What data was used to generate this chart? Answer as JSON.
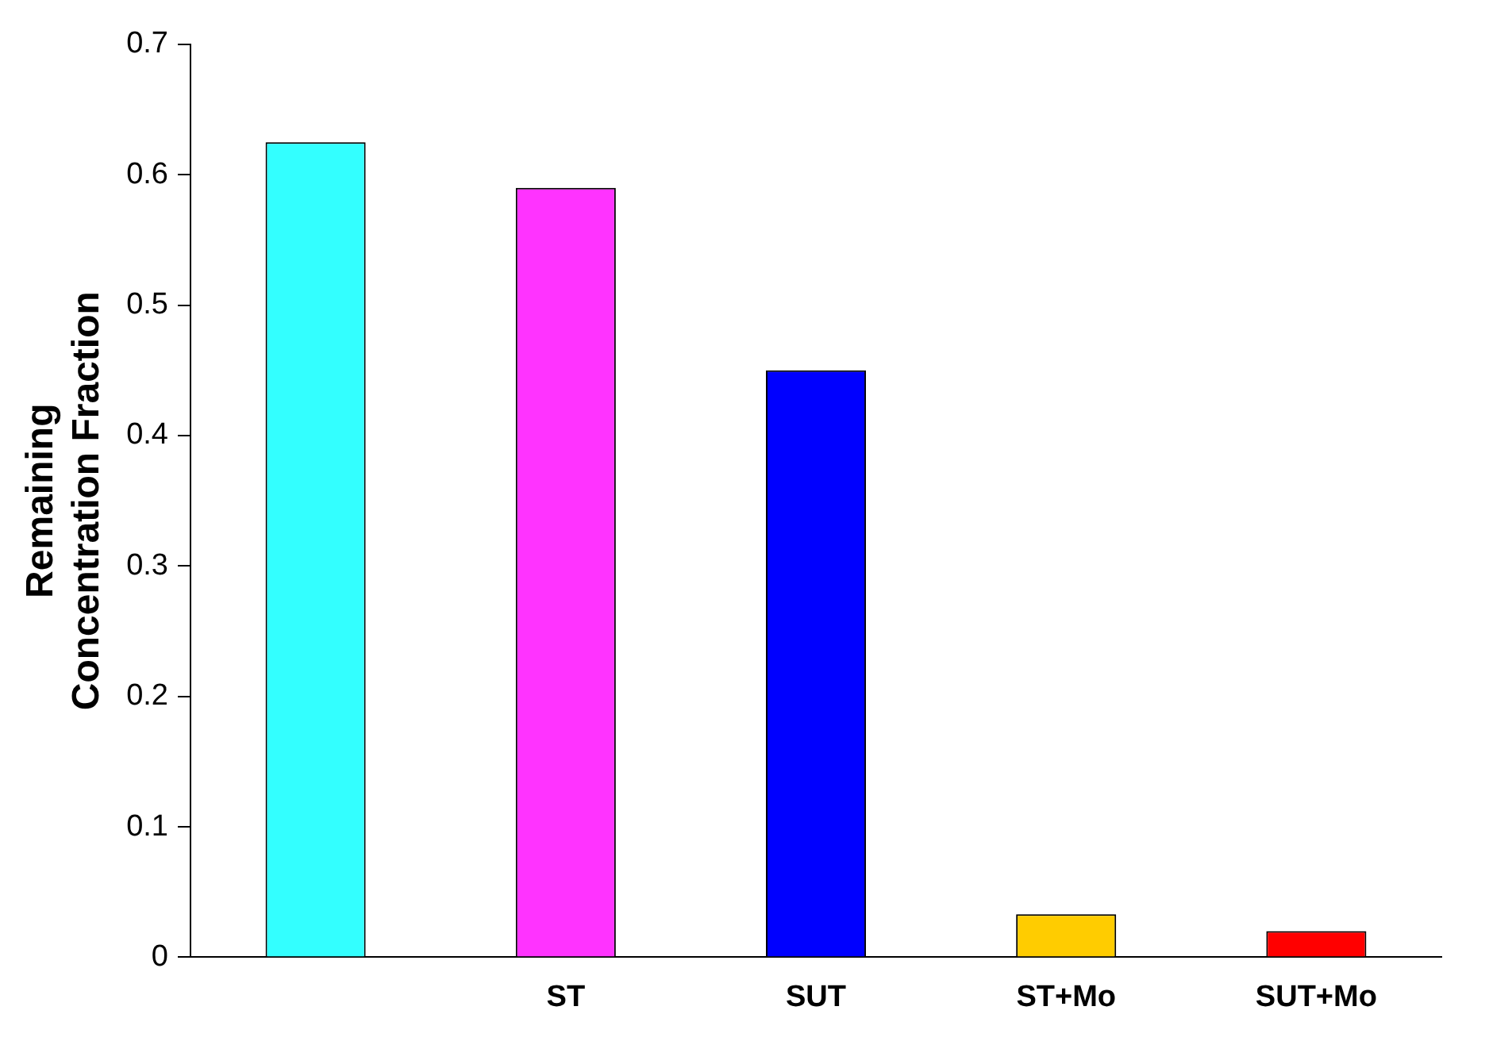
{
  "chart_data": {
    "type": "bar",
    "ylabel": "Remaining\nConcentration Fraction",
    "categories": [
      null,
      "ST",
      "SUT",
      "ST+Mo",
      "SUT+Mo"
    ],
    "values": [
      0.625,
      0.59,
      0.45,
      0.033,
      0.02
    ],
    "colors": [
      "#33ffff",
      "#ff33ff",
      "#0000ff",
      "#ffcc00",
      "#ff0000"
    ],
    "ylim": [
      0,
      0.7
    ],
    "yticks": [
      0,
      0.1,
      0.2,
      0.3,
      0.4,
      0.5,
      0.6,
      0.7
    ],
    "grid": false,
    "legend": false
  }
}
